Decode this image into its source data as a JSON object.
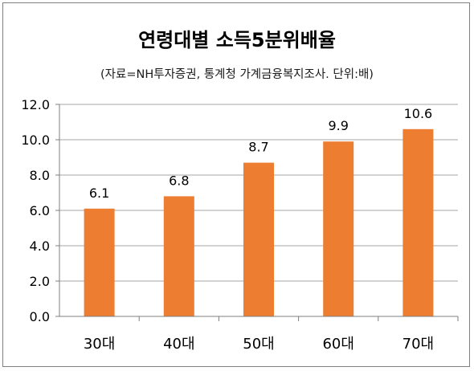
{
  "chart_data": {
    "type": "bar",
    "title": "연령대별 소득5분위배율",
    "subtitle": "(자료=NH투자증권, 통계청 가계금융복지조사. 단위:배)",
    "categories": [
      "30대",
      "40대",
      "50대",
      "60대",
      "70대"
    ],
    "values": [
      6.1,
      6.8,
      8.7,
      9.9,
      10.6
    ],
    "value_labels": [
      "6.1",
      "6.8",
      "8.7",
      "9.9",
      "10.6"
    ],
    "ylim": [
      0,
      12
    ],
    "yticks": [
      "0.0",
      "2.0",
      "4.0",
      "6.0",
      "8.0",
      "10.0",
      "12.0"
    ],
    "ytick_values": [
      0,
      2,
      4,
      6,
      8,
      10,
      12
    ],
    "xlabel": "",
    "ylabel": "",
    "grid": true,
    "legend": false,
    "bar_color": "#ed7d31",
    "grid_color": "#a6a6a6",
    "axis_color": "#7f7f7f"
  }
}
